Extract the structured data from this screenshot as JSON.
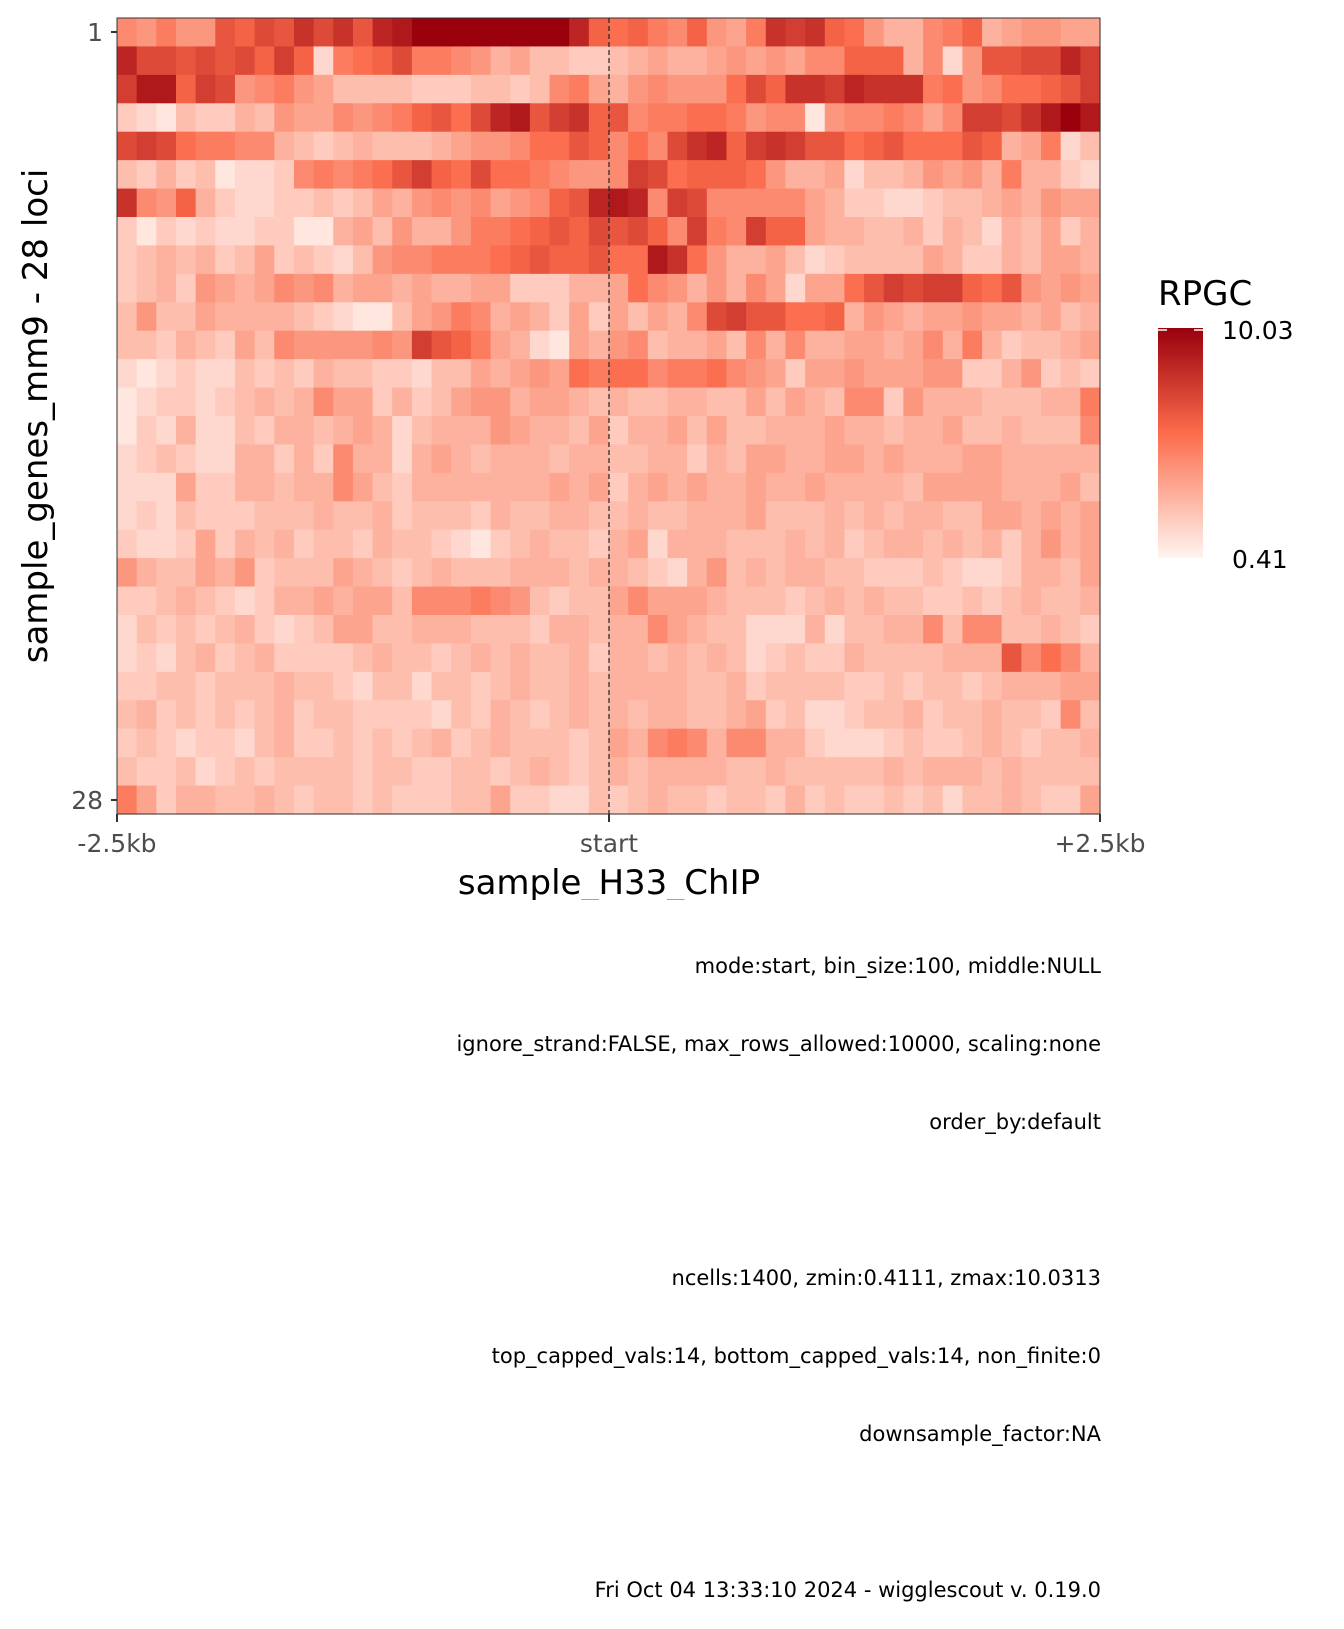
{
  "chart_data": {
    "type": "heatmap",
    "title": "sample_H33_ChIP",
    "ylabel": "sample_genes_mm9 - 28 loci",
    "y_ticks": [
      "1",
      "28"
    ],
    "x_ticks": [
      "-2.5kb",
      "start",
      "+2.5kb"
    ],
    "x_range": [
      -2500,
      2500
    ],
    "bin_size": 100,
    "n_rows": 28,
    "n_cols": 50,
    "marker_line": "start",
    "legend": {
      "title": "RPGC",
      "max_label": "10.03",
      "min_label": "0.41",
      "placement": "right"
    },
    "zmin": 0.4111,
    "zmax": 10.0313,
    "color_low": "#fff5f0",
    "color_mid": "#fb6a4a",
    "color_high": "#99000d",
    "grid": false,
    "values": [
      [
        4.5,
        4.0,
        5.0,
        4.0,
        4.0,
        6.5,
        6.0,
        7.0,
        6.5,
        8.0,
        7.0,
        8.0,
        6.5,
        8.5,
        9.0,
        10.0,
        10.0,
        10.0,
        10.0,
        10.0,
        10.0,
        10.0,
        10.0,
        8.5,
        6.0,
        5.5,
        6.0,
        5.0,
        4.5,
        6.0,
        4.0,
        3.5,
        5.0,
        8.0,
        7.5,
        8.0,
        6.0,
        5.5,
        4.0,
        3.0,
        3.0,
        4.5,
        5.0,
        6.0,
        3.0,
        3.5,
        4.0,
        4.0,
        3.5,
        3.5
      ],
      [
        8.5,
        7.0,
        7.0,
        6.5,
        7.0,
        6.5,
        7.0,
        6.0,
        7.5,
        6.0,
        1.5,
        5.0,
        5.5,
        6.0,
        7.0,
        5.0,
        5.0,
        4.5,
        4.0,
        3.0,
        3.5,
        2.5,
        2.5,
        2.0,
        2.0,
        2.5,
        3.0,
        3.5,
        3.0,
        3.0,
        3.5,
        4.0,
        3.5,
        4.0,
        3.5,
        4.5,
        4.5,
        6.0,
        6.0,
        6.0,
        3.0,
        4.5,
        1.5,
        4.0,
        6.5,
        6.5,
        7.0,
        7.0,
        8.5,
        7.5
      ],
      [
        7.5,
        9.0,
        9.0,
        6.0,
        7.5,
        7.0,
        4.0,
        4.5,
        5.0,
        4.0,
        3.5,
        2.5,
        2.5,
        2.5,
        2.5,
        2.0,
        2.0,
        2.0,
        2.5,
        2.5,
        2.0,
        2.5,
        4.5,
        5.0,
        3.5,
        3.0,
        4.0,
        4.5,
        4.0,
        4.0,
        4.0,
        5.5,
        7.0,
        6.0,
        8.0,
        8.0,
        7.5,
        8.5,
        8.0,
        8.0,
        8.0,
        5.0,
        5.5,
        4.0,
        4.5,
        5.5,
        5.5,
        6.0,
        6.5,
        7.5
      ],
      [
        2.0,
        1.5,
        1.0,
        2.5,
        2.0,
        2.0,
        3.0,
        2.5,
        4.0,
        3.5,
        3.5,
        4.5,
        4.0,
        4.5,
        5.0,
        6.0,
        6.5,
        5.5,
        7.0,
        8.5,
        9.0,
        6.5,
        7.5,
        8.0,
        6.0,
        6.5,
        4.5,
        5.0,
        5.0,
        5.5,
        5.5,
        5.0,
        4.0,
        4.5,
        4.5,
        1.0,
        4.0,
        4.5,
        4.5,
        5.0,
        4.5,
        3.5,
        4.5,
        7.5,
        7.5,
        7.0,
        8.0,
        9.0,
        10.0,
        9.0
      ],
      [
        7.0,
        7.5,
        7.0,
        5.5,
        5.0,
        5.0,
        4.5,
        4.5,
        3.0,
        2.5,
        2.0,
        2.5,
        3.0,
        2.5,
        2.5,
        2.5,
        3.0,
        3.5,
        4.0,
        4.0,
        4.5,
        5.5,
        5.5,
        6.5,
        6.0,
        4.5,
        5.5,
        4.5,
        7.0,
        8.0,
        8.5,
        6.0,
        7.5,
        8.0,
        7.5,
        6.5,
        6.5,
        5.5,
        6.0,
        6.5,
        5.5,
        5.5,
        5.5,
        6.5,
        6.0,
        3.0,
        3.5,
        5.0,
        1.5,
        2.5
      ],
      [
        2.5,
        2.0,
        3.0,
        2.0,
        2.5,
        1.0,
        1.5,
        1.5,
        2.0,
        4.5,
        5.0,
        4.5,
        5.0,
        5.5,
        6.5,
        7.5,
        6.0,
        5.5,
        7.0,
        5.5,
        5.5,
        5.0,
        4.5,
        4.0,
        4.0,
        4.5,
        7.5,
        7.0,
        5.5,
        6.0,
        6.0,
        6.0,
        5.5,
        4.0,
        3.0,
        3.0,
        3.5,
        1.5,
        2.5,
        2.5,
        3.0,
        4.0,
        3.5,
        4.0,
        3.0,
        5.0,
        3.0,
        3.0,
        2.0,
        1.5
      ],
      [
        8.0,
        4.5,
        4.0,
        6.0,
        3.0,
        2.0,
        1.5,
        1.5,
        2.0,
        2.0,
        2.5,
        2.0,
        2.5,
        3.5,
        3.0,
        4.0,
        4.5,
        4.0,
        4.5,
        3.5,
        4.0,
        4.5,
        6.0,
        6.5,
        8.5,
        9.0,
        8.5,
        4.5,
        7.5,
        7.0,
        4.5,
        4.5,
        4.5,
        4.5,
        4.5,
        3.5,
        3.0,
        2.0,
        2.0,
        1.5,
        1.5,
        2.0,
        2.5,
        2.5,
        3.0,
        3.5,
        3.0,
        4.0,
        3.5,
        3.5
      ],
      [
        2.0,
        1.0,
        2.0,
        1.5,
        2.0,
        1.5,
        1.5,
        2.0,
        2.0,
        1.0,
        1.0,
        3.0,
        3.5,
        2.5,
        4.0,
        3.0,
        3.0,
        4.0,
        5.0,
        5.0,
        5.5,
        6.0,
        6.5,
        6.0,
        7.0,
        6.5,
        7.0,
        6.0,
        4.5,
        7.5,
        5.0,
        4.5,
        7.5,
        6.0,
        6.0,
        3.5,
        3.0,
        3.0,
        2.5,
        2.5,
        3.0,
        2.0,
        3.0,
        2.5,
        1.5,
        3.0,
        2.5,
        3.5,
        2.0,
        3.0
      ],
      [
        2.0,
        2.5,
        3.0,
        2.5,
        3.0,
        2.0,
        2.5,
        3.5,
        2.0,
        2.5,
        2.0,
        1.5,
        2.5,
        4.0,
        4.5,
        4.5,
        5.0,
        5.0,
        5.0,
        5.5,
        6.0,
        6.5,
        6.0,
        6.0,
        6.5,
        5.5,
        5.5,
        9.0,
        8.0,
        5.5,
        4.0,
        3.0,
        3.0,
        3.5,
        2.5,
        1.5,
        2.0,
        2.5,
        2.5,
        2.5,
        2.5,
        3.5,
        3.0,
        2.0,
        2.0,
        3.0,
        2.5,
        3.5,
        3.5,
        3.0
      ],
      [
        2.0,
        2.5,
        3.0,
        2.0,
        4.0,
        3.5,
        3.0,
        3.5,
        4.5,
        4.0,
        4.5,
        3.0,
        3.5,
        3.5,
        3.0,
        3.5,
        3.0,
        3.0,
        3.5,
        3.5,
        2.0,
        2.0,
        2.0,
        3.0,
        3.0,
        3.5,
        5.5,
        4.5,
        4.0,
        3.0,
        4.0,
        3.0,
        4.5,
        3.5,
        1.5,
        3.5,
        3.5,
        5.5,
        6.5,
        7.5,
        7.0,
        7.5,
        7.5,
        6.0,
        5.5,
        6.5,
        4.0,
        3.5,
        4.0,
        3.5
      ],
      [
        2.5,
        4.0,
        2.5,
        2.5,
        3.5,
        3.0,
        3.0,
        3.0,
        3.0,
        2.5,
        2.0,
        1.5,
        1.0,
        1.0,
        2.5,
        3.5,
        4.0,
        5.0,
        4.5,
        3.0,
        3.5,
        3.0,
        2.0,
        3.5,
        2.0,
        3.5,
        2.5,
        3.5,
        3.0,
        4.5,
        7.0,
        7.5,
        6.5,
        6.5,
        5.5,
        5.5,
        6.0,
        3.0,
        4.0,
        3.5,
        3.0,
        3.5,
        3.5,
        4.0,
        3.5,
        3.5,
        3.0,
        3.5,
        2.5,
        3.0
      ],
      [
        2.5,
        2.5,
        2.0,
        3.0,
        2.5,
        2.0,
        3.5,
        2.5,
        4.5,
        4.0,
        4.0,
        4.0,
        4.0,
        4.5,
        4.0,
        7.5,
        6.5,
        6.0,
        5.0,
        3.5,
        3.0,
        1.5,
        1.0,
        3.5,
        3.0,
        4.0,
        4.5,
        2.5,
        3.0,
        3.0,
        3.5,
        2.5,
        4.5,
        3.0,
        4.5,
        3.0,
        3.0,
        3.5,
        3.5,
        3.0,
        3.5,
        4.5,
        3.0,
        5.0,
        3.0,
        2.0,
        2.5,
        2.5,
        3.0,
        3.5
      ],
      [
        1.5,
        1.0,
        1.5,
        2.0,
        1.5,
        1.5,
        2.5,
        2.0,
        2.5,
        2.0,
        3.0,
        2.5,
        2.5,
        2.0,
        2.0,
        1.5,
        2.5,
        2.5,
        3.5,
        3.0,
        3.5,
        4.0,
        3.5,
        5.5,
        5.0,
        5.5,
        5.5,
        4.5,
        5.0,
        5.0,
        5.5,
        4.5,
        4.0,
        3.5,
        2.0,
        3.5,
        3.5,
        4.0,
        3.5,
        3.5,
        3.5,
        4.0,
        4.0,
        2.0,
        2.0,
        3.0,
        4.0,
        2.0,
        2.5,
        2.0
      ],
      [
        1.0,
        1.5,
        2.0,
        2.0,
        1.5,
        2.0,
        2.5,
        3.0,
        2.5,
        3.0,
        4.5,
        3.5,
        3.5,
        2.0,
        3.0,
        2.0,
        2.5,
        3.5,
        4.0,
        4.0,
        3.0,
        3.5,
        3.5,
        3.0,
        2.5,
        3.0,
        2.5,
        2.5,
        3.0,
        3.0,
        2.5,
        2.5,
        3.5,
        2.5,
        3.5,
        3.0,
        2.5,
        4.5,
        4.5,
        2.0,
        4.0,
        3.0,
        3.0,
        3.0,
        2.5,
        2.5,
        2.5,
        3.0,
        3.0,
        5.0
      ],
      [
        1.0,
        2.0,
        1.5,
        3.0,
        1.5,
        1.5,
        2.5,
        2.0,
        3.0,
        3.0,
        2.5,
        3.0,
        3.5,
        3.0,
        1.5,
        2.5,
        3.0,
        3.0,
        3.0,
        4.0,
        3.5,
        3.0,
        3.0,
        2.5,
        3.5,
        2.0,
        3.0,
        3.0,
        3.5,
        2.5,
        3.5,
        2.5,
        2.5,
        3.0,
        3.0,
        3.0,
        3.5,
        3.0,
        3.0,
        2.5,
        3.0,
        3.0,
        3.5,
        2.5,
        2.5,
        3.0,
        2.5,
        2.5,
        2.5,
        4.5
      ],
      [
        1.5,
        2.0,
        2.5,
        2.0,
        1.5,
        1.5,
        3.0,
        3.0,
        2.0,
        3.0,
        2.0,
        4.5,
        3.0,
        3.0,
        1.5,
        3.0,
        3.5,
        3.0,
        2.5,
        3.0,
        3.0,
        3.0,
        2.5,
        3.0,
        3.0,
        2.5,
        2.5,
        3.0,
        3.0,
        2.0,
        3.0,
        2.5,
        3.5,
        3.5,
        3.0,
        3.0,
        3.5,
        3.5,
        3.0,
        3.5,
        3.0,
        3.0,
        3.0,
        3.5,
        3.5,
        3.0,
        3.0,
        3.0,
        3.0,
        3.0
      ],
      [
        1.5,
        1.5,
        1.5,
        3.5,
        2.0,
        2.0,
        3.0,
        3.0,
        2.5,
        3.0,
        3.0,
        4.5,
        3.5,
        2.5,
        2.0,
        3.0,
        3.0,
        3.0,
        3.0,
        3.0,
        3.0,
        3.0,
        3.5,
        3.0,
        3.5,
        2.0,
        3.0,
        3.5,
        3.0,
        3.5,
        3.0,
        3.0,
        3.5,
        3.0,
        3.0,
        3.5,
        3.0,
        3.0,
        3.0,
        3.0,
        2.5,
        3.5,
        3.5,
        3.5,
        3.5,
        3.0,
        3.0,
        3.0,
        3.5,
        2.5
      ],
      [
        1.5,
        2.0,
        1.5,
        2.5,
        2.0,
        2.0,
        2.0,
        2.5,
        2.5,
        2.5,
        3.0,
        2.5,
        2.5,
        3.0,
        2.0,
        2.5,
        2.5,
        2.5,
        2.0,
        3.0,
        2.5,
        2.5,
        3.0,
        3.0,
        2.5,
        2.5,
        3.0,
        2.5,
        2.5,
        3.0,
        3.0,
        3.0,
        3.5,
        2.5,
        2.5,
        2.5,
        3.0,
        2.5,
        3.0,
        2.5,
        3.0,
        3.0,
        2.5,
        2.5,
        3.5,
        3.5,
        3.0,
        3.5,
        3.0,
        3.5
      ],
      [
        2.0,
        1.5,
        1.5,
        2.0,
        3.5,
        2.0,
        3.0,
        2.5,
        3.0,
        2.0,
        2.5,
        2.5,
        2.0,
        3.0,
        2.5,
        2.5,
        2.0,
        1.5,
        1.0,
        2.0,
        2.5,
        3.0,
        2.5,
        2.5,
        2.0,
        3.0,
        3.5,
        1.5,
        3.0,
        3.0,
        3.0,
        2.5,
        2.5,
        2.5,
        3.0,
        2.5,
        3.0,
        2.0,
        2.5,
        3.0,
        3.0,
        2.5,
        3.0,
        2.5,
        3.0,
        2.0,
        3.0,
        4.0,
        3.0,
        3.5
      ],
      [
        4.0,
        3.0,
        2.5,
        2.5,
        3.5,
        3.0,
        4.0,
        2.0,
        2.5,
        2.5,
        2.5,
        3.5,
        3.0,
        2.5,
        2.0,
        2.5,
        3.0,
        2.5,
        2.5,
        2.5,
        3.0,
        3.0,
        3.0,
        2.5,
        3.0,
        3.0,
        2.5,
        2.0,
        1.5,
        3.0,
        4.0,
        2.5,
        3.0,
        2.5,
        3.0,
        3.0,
        2.5,
        2.5,
        2.0,
        2.0,
        2.0,
        2.5,
        2.0,
        1.5,
        1.5,
        2.0,
        3.0,
        3.0,
        2.5,
        3.5
      ],
      [
        2.0,
        2.0,
        2.5,
        3.0,
        2.5,
        2.0,
        1.5,
        2.0,
        3.0,
        3.0,
        3.5,
        3.0,
        3.5,
        3.5,
        2.5,
        4.5,
        4.5,
        4.5,
        5.0,
        4.5,
        4.0,
        2.5,
        2.0,
        2.5,
        2.5,
        3.5,
        4.5,
        3.5,
        3.5,
        3.5,
        3.0,
        2.5,
        2.5,
        2.5,
        2.0,
        2.5,
        3.0,
        2.5,
        3.0,
        2.5,
        2.5,
        2.0,
        2.0,
        2.5,
        2.0,
        2.5,
        3.0,
        2.5,
        2.5,
        3.0
      ],
      [
        1.5,
        2.5,
        2.0,
        2.5,
        2.0,
        2.5,
        3.0,
        2.0,
        1.5,
        2.0,
        2.5,
        3.5,
        3.5,
        2.5,
        2.5,
        3.0,
        3.0,
        3.0,
        2.5,
        2.5,
        2.5,
        2.0,
        3.0,
        3.0,
        2.5,
        3.0,
        3.0,
        4.5,
        3.5,
        3.0,
        2.5,
        2.5,
        1.5,
        1.5,
        1.5,
        3.0,
        1.5,
        2.5,
        2.5,
        3.0,
        3.0,
        4.5,
        2.5,
        4.5,
        4.5,
        2.5,
        2.5,
        3.0,
        2.5,
        2.0
      ],
      [
        1.5,
        2.0,
        1.5,
        2.5,
        3.0,
        2.0,
        2.5,
        3.0,
        2.0,
        2.0,
        2.0,
        2.0,
        2.5,
        3.0,
        2.5,
        2.5,
        2.0,
        2.5,
        3.0,
        2.5,
        3.0,
        2.5,
        2.5,
        3.0,
        2.0,
        3.0,
        3.0,
        2.5,
        3.0,
        2.5,
        3.0,
        2.5,
        1.5,
        2.0,
        2.5,
        2.0,
        2.0,
        3.0,
        2.5,
        2.5,
        2.5,
        2.5,
        3.0,
        3.0,
        3.0,
        6.5,
        4.5,
        5.5,
        4.5,
        3.0
      ],
      [
        2.0,
        2.0,
        2.5,
        2.5,
        2.0,
        2.5,
        2.5,
        2.5,
        3.0,
        2.5,
        2.5,
        2.0,
        1.5,
        2.5,
        2.5,
        1.5,
        2.5,
        2.5,
        2.0,
        2.5,
        3.0,
        2.5,
        2.5,
        3.0,
        2.5,
        3.0,
        3.0,
        3.0,
        3.0,
        2.5,
        2.5,
        3.0,
        2.0,
        2.5,
        2.5,
        2.5,
        2.5,
        2.0,
        2.0,
        2.5,
        2.0,
        2.5,
        2.5,
        2.0,
        2.5,
        3.0,
        3.0,
        3.0,
        3.5,
        3.5
      ],
      [
        2.5,
        3.0,
        2.0,
        2.5,
        2.0,
        2.5,
        2.0,
        2.5,
        3.0,
        2.0,
        2.5,
        2.5,
        2.0,
        2.0,
        2.0,
        2.0,
        1.5,
        2.5,
        2.0,
        3.0,
        2.5,
        2.0,
        2.5,
        3.0,
        2.5,
        3.0,
        2.5,
        3.0,
        3.0,
        2.5,
        2.5,
        3.0,
        3.5,
        2.0,
        2.5,
        1.5,
        1.5,
        2.0,
        2.5,
        2.5,
        3.0,
        2.0,
        2.5,
        2.5,
        3.0,
        2.5,
        2.5,
        2.0,
        4.5,
        2.5
      ],
      [
        2.0,
        2.5,
        2.0,
        1.5,
        2.0,
        2.0,
        1.5,
        2.5,
        3.0,
        2.0,
        2.0,
        2.5,
        2.0,
        2.5,
        2.0,
        2.5,
        3.0,
        2.0,
        2.5,
        3.0,
        2.5,
        2.5,
        2.5,
        2.0,
        2.5,
        3.5,
        3.0,
        4.5,
        5.0,
        4.5,
        3.0,
        4.5,
        4.5,
        3.0,
        3.0,
        2.0,
        1.5,
        1.5,
        1.5,
        2.0,
        2.5,
        2.0,
        2.0,
        2.5,
        3.0,
        2.5,
        2.0,
        2.5,
        2.5,
        3.0
      ],
      [
        2.5,
        2.0,
        2.0,
        2.5,
        1.5,
        2.0,
        2.5,
        2.0,
        2.5,
        2.5,
        2.5,
        2.5,
        2.0,
        2.5,
        2.5,
        2.0,
        2.0,
        2.5,
        2.5,
        2.0,
        2.5,
        3.0,
        2.5,
        2.0,
        2.5,
        3.0,
        2.5,
        3.0,
        3.0,
        3.0,
        3.0,
        2.5,
        2.5,
        3.0,
        2.5,
        2.5,
        2.5,
        2.5,
        2.5,
        3.0,
        2.5,
        3.0,
        3.0,
        3.0,
        2.5,
        3.0,
        2.5,
        2.5,
        2.5,
        2.5
      ],
      [
        5.0,
        3.5,
        2.0,
        3.0,
        3.0,
        2.5,
        2.5,
        3.0,
        2.5,
        2.0,
        2.5,
        2.5,
        2.0,
        2.5,
        2.0,
        2.0,
        2.0,
        2.5,
        2.5,
        3.5,
        2.0,
        2.0,
        1.5,
        1.5,
        2.5,
        2.0,
        2.5,
        3.0,
        2.5,
        2.5,
        2.0,
        2.5,
        2.5,
        2.0,
        3.0,
        2.0,
        2.5,
        2.0,
        2.0,
        2.5,
        2.0,
        2.5,
        1.5,
        2.5,
        2.5,
        3.0,
        2.5,
        2.0,
        2.0,
        3.5
      ]
    ],
    "caption": [
      "mode:start, bin_size:100, middle:NULL",
      "ignore_strand:FALSE, max_rows_allowed:10000, scaling:none",
      "order_by:default",
      "",
      "ncells:1400, zmin:0.4111, zmax:10.0313",
      "top_capped_vals:14, bottom_capped_vals:14, non_finite:0",
      "downsample_factor:NA",
      "",
      "Fri Oct 04 13:33:10 2024 - wigglescout v. 0.19.0"
    ]
  }
}
